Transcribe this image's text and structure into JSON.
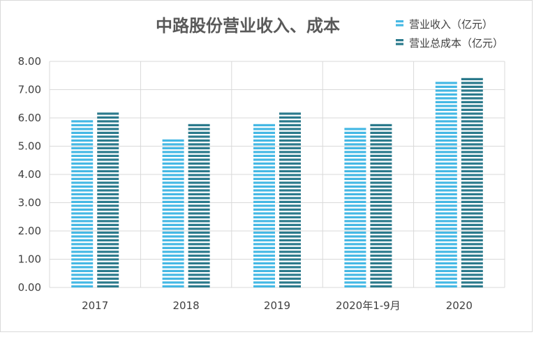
{
  "chart_data": {
    "type": "bar",
    "title": "中路股份营业收入、成本",
    "categories": [
      "2017",
      "2018",
      "2019",
      "2020年1-9月",
      "2020"
    ],
    "series": [
      {
        "name": "营业收入（亿元）",
        "color": "#45b8e4",
        "values": [
          6.05,
          5.3,
          5.85,
          5.7,
          7.28
        ]
      },
      {
        "name": "营业总成本（亿元）",
        "color": "#2b7a8c",
        "values": [
          6.3,
          5.9,
          6.3,
          5.9,
          7.48
        ]
      }
    ],
    "ylim": [
      0,
      8
    ],
    "yticks": [
      "0.00",
      "1.00",
      "2.00",
      "3.00",
      "4.00",
      "5.00",
      "6.00",
      "7.00",
      "8.00"
    ],
    "xlabel": "",
    "ylabel": "",
    "grid": true,
    "legend_position": "top-right",
    "bar_style": "horizontal-striped"
  }
}
